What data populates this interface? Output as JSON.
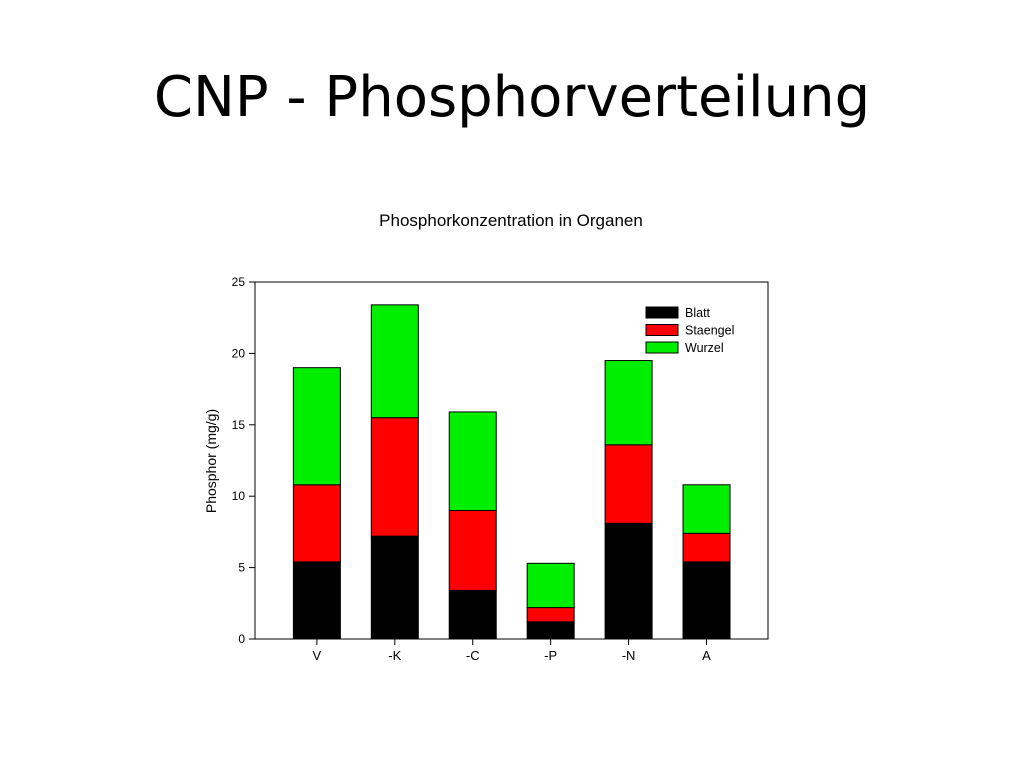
{
  "slide": {
    "title": "CNP - Phosphorverteilung"
  },
  "chart_data": {
    "type": "bar",
    "stacked": true,
    "title": "Phosphorkonzentration in Organen",
    "xlabel": "",
    "ylabel": "Phosphor (mg/g)",
    "ylim": [
      0,
      25
    ],
    "yticks": [
      0,
      5,
      10,
      15,
      20,
      25
    ],
    "grid": false,
    "legend_position": "top-right",
    "categories": [
      "V",
      "-K",
      "-C",
      "-P",
      "-N",
      "A"
    ],
    "series": [
      {
        "name": "Blatt",
        "color": "#000000",
        "values": [
          5.4,
          7.2,
          3.4,
          1.2,
          8.1,
          5.4
        ]
      },
      {
        "name": "Staengel",
        "color": "#ff0000",
        "values": [
          5.4,
          8.3,
          5.6,
          1.0,
          5.5,
          2.0
        ]
      },
      {
        "name": "Wurzel",
        "color": "#00ee00",
        "values": [
          8.2,
          7.9,
          6.9,
          3.1,
          5.9,
          3.4
        ]
      }
    ]
  }
}
